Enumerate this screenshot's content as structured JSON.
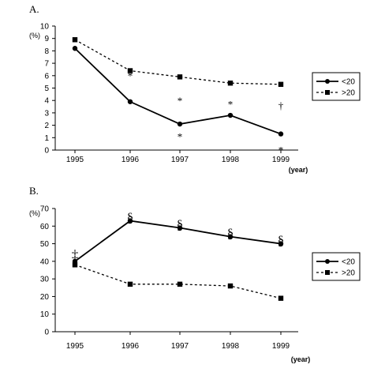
{
  "chart_data": [
    {
      "type": "line",
      "panel_label": "A.",
      "ylabel": "(%)",
      "xlabel": "(year)",
      "categories": [
        "1995",
        "1996",
        "1997",
        "1998",
        "1999"
      ],
      "ylim": [
        0,
        10
      ],
      "yticks": [
        "0",
        "1",
        "2",
        "3",
        "4",
        "5",
        "6",
        "7",
        "8",
        "9",
        "10"
      ],
      "grid": false,
      "legend_position": "right",
      "series": [
        {
          "name": "<20",
          "style": "solid",
          "marker": "circle",
          "values": [
            8.2,
            3.9,
            2.1,
            2.8,
            1.3
          ]
        },
        {
          "name": ">20",
          "style": "dashed",
          "marker": "square",
          "values": [
            8.9,
            6.4,
            5.9,
            5.4,
            5.3
          ]
        }
      ],
      "annotations": [
        {
          "text": "*",
          "x": "1996",
          "y": 6.0
        },
        {
          "text": "*",
          "x": "1997",
          "y": 4.0
        },
        {
          "text": "*",
          "x": "1997",
          "y": 1.1
        },
        {
          "text": "*",
          "x": "1998",
          "y": 3.7
        },
        {
          "text": "†",
          "x": "1999",
          "y": 3.6
        },
        {
          "text": "*",
          "x": "1999",
          "y": 0.0
        }
      ]
    },
    {
      "type": "line",
      "panel_label": "B.",
      "ylabel": "(%)",
      "xlabel": "(year)",
      "categories": [
        "1995",
        "1996",
        "1997",
        "1998",
        "1999"
      ],
      "ylim": [
        0,
        70
      ],
      "yticks": [
        "0",
        "10",
        "20",
        "30",
        "40",
        "50",
        "60",
        "70"
      ],
      "grid": false,
      "legend_position": "right",
      "series": [
        {
          "name": "<20",
          "style": "solid",
          "marker": "circle",
          "values": [
            40,
            63,
            59,
            54,
            50
          ]
        },
        {
          "name": ">20",
          "style": "dashed",
          "marker": "square",
          "values": [
            38,
            27,
            27,
            26,
            19
          ]
        }
      ],
      "annotations": [
        {
          "text": "‡",
          "x": "1995",
          "y": 44
        },
        {
          "text": "§",
          "x": "1996",
          "y": 65
        },
        {
          "text": "§",
          "x": "1997",
          "y": 61
        },
        {
          "text": "§",
          "x": "1998",
          "y": 56
        },
        {
          "text": "§",
          "x": "1999",
          "y": 52
        }
      ]
    }
  ]
}
